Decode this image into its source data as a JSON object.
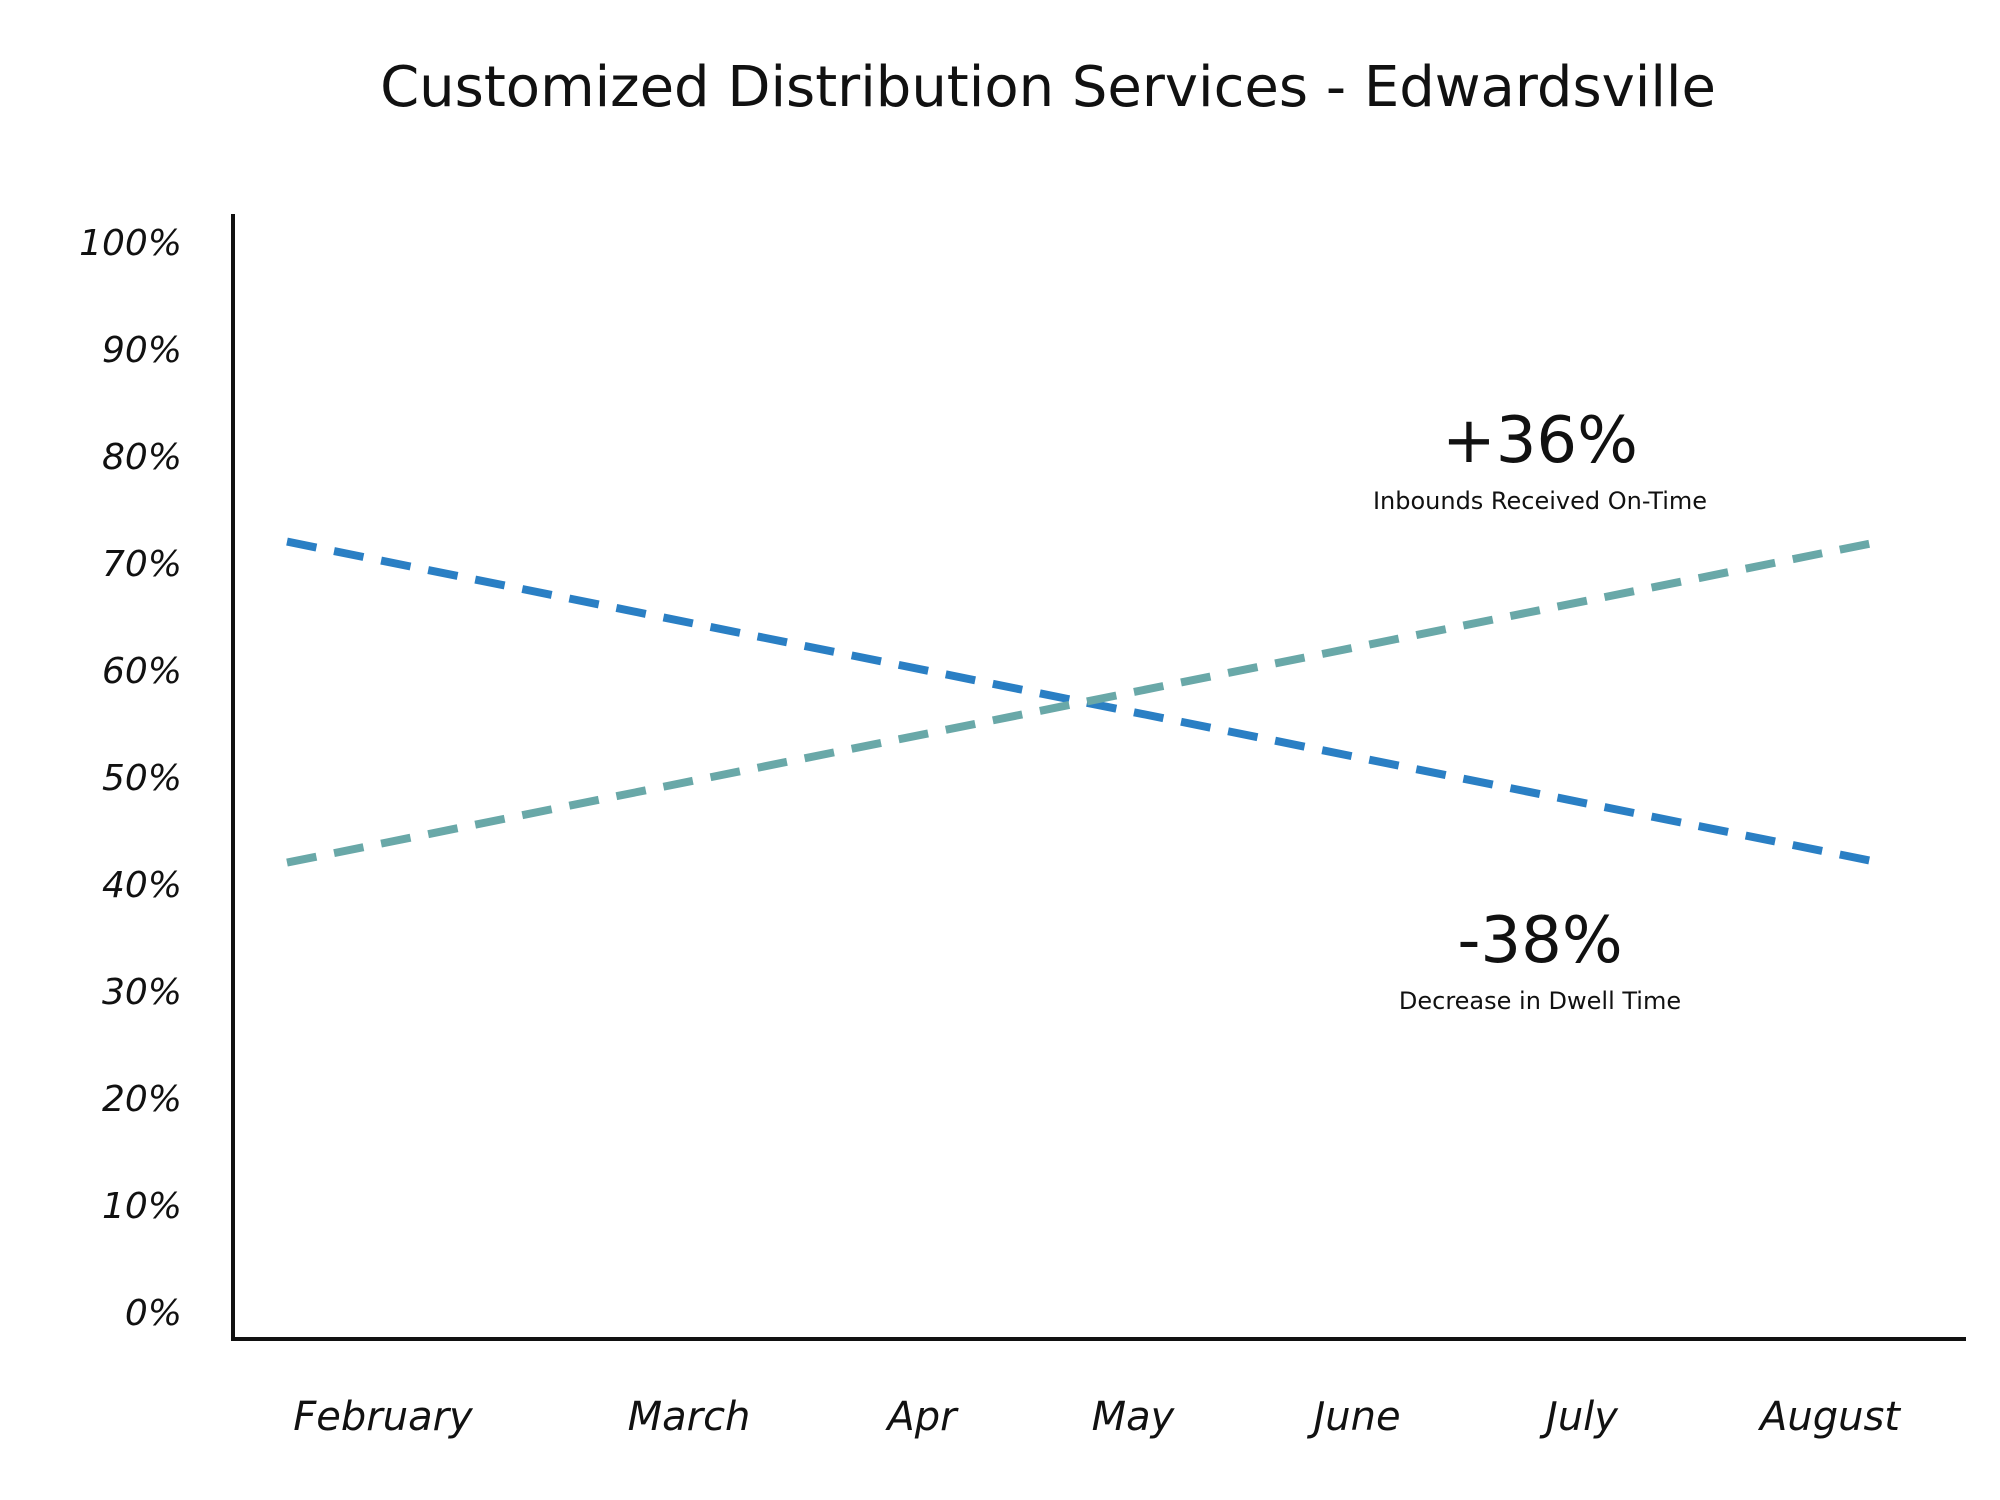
{
  "chart_data": {
    "type": "line",
    "title": "Customized Distribution Services - Edwardsville",
    "xlabel": "",
    "ylabel": "",
    "categories": [
      "February",
      "March",
      "Apr",
      "May",
      "June",
      "July",
      "August"
    ],
    "ylim": [
      0,
      100
    ],
    "yticks": [
      "0%",
      "10%",
      "20%",
      "30%",
      "40%",
      "50%",
      "60%",
      "70%",
      "80%",
      "90%",
      "100%"
    ],
    "grid": false,
    "series": [
      {
        "color": "#2A7FC4",
        "dashed": true,
        "start": {
          "x": "February",
          "y": 72
        },
        "end": {
          "x": "August",
          "y": 42
        }
      },
      {
        "color": "#69A8A8",
        "dashed": true,
        "start": {
          "x": "February",
          "y": 42
        },
        "end": {
          "x": "August",
          "y": 72
        }
      }
    ],
    "annotations": [
      {
        "value": "+36%",
        "label": "Inbounds Received On-Time"
      },
      {
        "value": "-38%",
        "label": "Decrease in Dwell Time"
      }
    ]
  }
}
